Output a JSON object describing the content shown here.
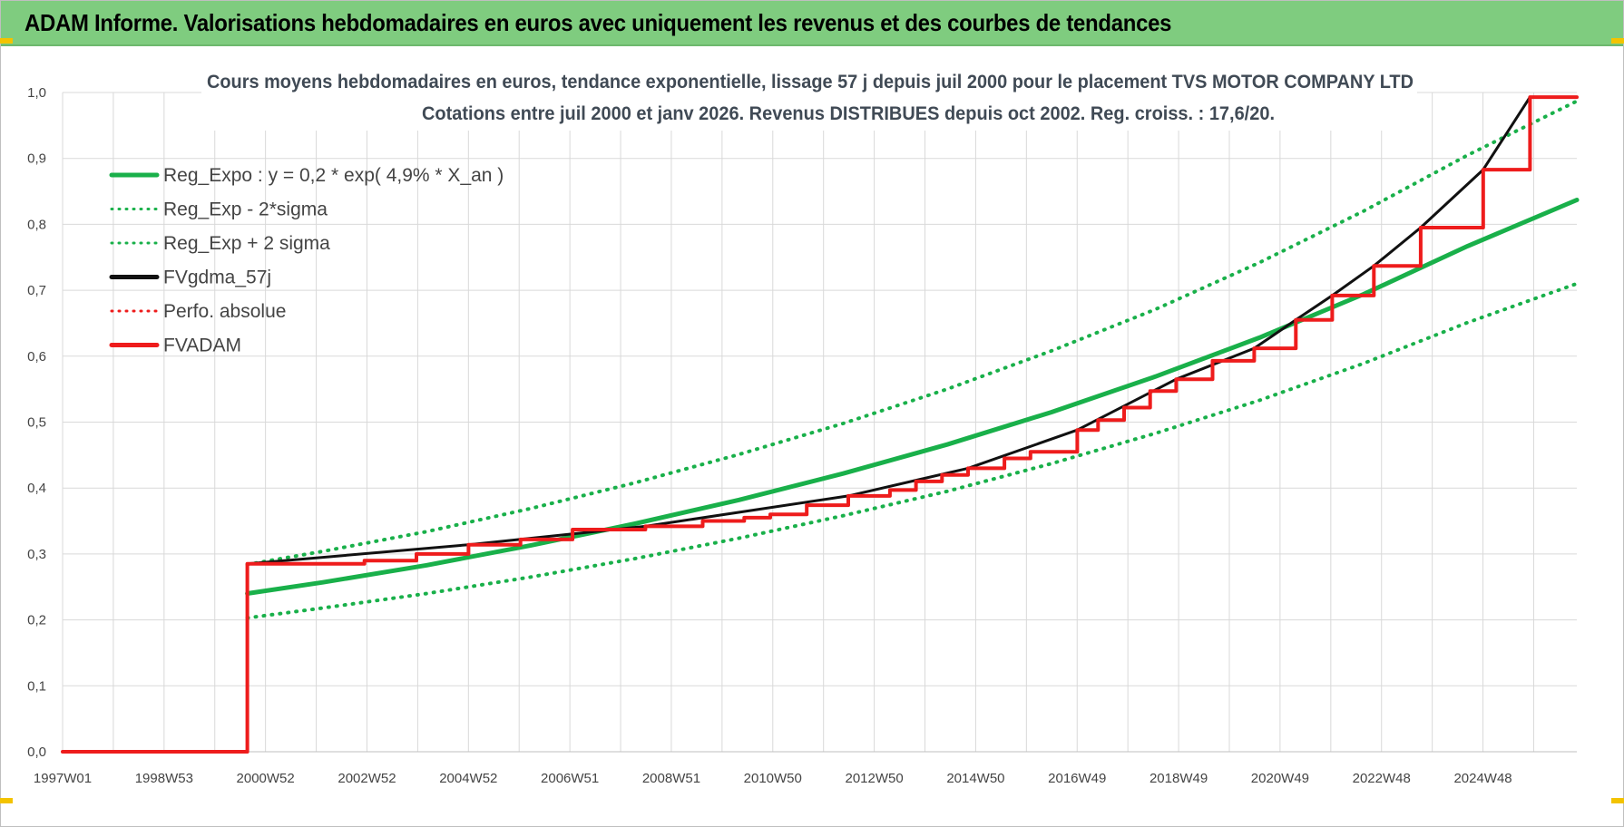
{
  "header": {
    "title": "ADAM Informe. Valorisations hebdomadaires en euros avec uniquement les revenus et des courbes de tendances"
  },
  "colors": {
    "header_bg": "#7fcc7f",
    "green": "#19b04a",
    "red": "#ee1c1c",
    "black": "#111111",
    "grid": "#d9d9d9",
    "corner": "#f3c300"
  },
  "chart_data": {
    "type": "line",
    "title": "Cours moyens hebdomadaires en euros, tendance exponentielle, lissage 57 j depuis juil 2000 pour le placement TVS MOTOR COMPANY LTD",
    "subtitle": "Cotations entre juil 2000 et janv 2026. Revenus DISTRIBUES depuis oct 2002. Reg. croiss. : 17,6/20.",
    "xlabel": "",
    "ylabel": "",
    "xlim": [
      1997.0,
      2026.1
    ],
    "ylim": [
      0.0,
      1.0
    ],
    "y_ticks": [
      "0,0",
      "0,1",
      "0,2",
      "0,3",
      "0,4",
      "0,5",
      "0,6",
      "0,7",
      "0,8",
      "0,9",
      "1,0"
    ],
    "x_tick_labels": [
      "1997W01",
      "1998W53",
      "2000W52",
      "2002W52",
      "2004W52",
      "2006W51",
      "2008W51",
      "2010W50",
      "2012W50",
      "2014W50",
      "2016W49",
      "2018W49",
      "2020W49",
      "2022W48",
      "2024W48"
    ],
    "grid": true,
    "legend_position": "top-left",
    "legend": [
      {
        "label": "Reg_Expo : y = 0,2 * exp( 4,9% *  X_an )",
        "color": "#19b04a",
        "style": "solid"
      },
      {
        "label": "Reg_Exp - 2*sigma",
        "color": "#19b04a",
        "style": "dotted"
      },
      {
        "label": "Reg_Exp + 2 sigma",
        "color": "#19b04a",
        "style": "dotted"
      },
      {
        "label": "FVgdma_57j",
        "color": "#111111",
        "style": "solid"
      },
      {
        "label": "Perfo. absolue",
        "color": "#ee1c1c",
        "style": "dotted"
      },
      {
        "label": "FVADAM",
        "color": "#ee1c1c",
        "style": "solid"
      }
    ],
    "series": [
      {
        "name": "Reg_Expo",
        "x": [
          2000.55,
          2002,
          2004,
          2006,
          2008,
          2010,
          2012,
          2014,
          2016,
          2018,
          2020,
          2022,
          2024,
          2026.1
        ],
        "values": [
          0.24,
          0.257,
          0.283,
          0.313,
          0.346,
          0.382,
          0.422,
          0.466,
          0.515,
          0.569,
          0.628,
          0.694,
          0.767,
          0.837
        ]
      },
      {
        "name": "Reg_Exp - 2*sigma",
        "x": [
          2000.55,
          2002,
          2004,
          2006,
          2008,
          2010,
          2012,
          2014,
          2016,
          2018,
          2020,
          2022,
          2024,
          2026.1
        ],
        "values": [
          0.203,
          0.218,
          0.24,
          0.265,
          0.293,
          0.324,
          0.358,
          0.395,
          0.437,
          0.483,
          0.533,
          0.589,
          0.651,
          0.71
        ]
      },
      {
        "name": "Reg_Exp + 2 sigma",
        "x": [
          2000.55,
          2002,
          2004,
          2006,
          2008,
          2010,
          2012,
          2014,
          2016,
          2018,
          2020,
          2022,
          2024,
          2026.1
        ],
        "values": [
          0.284,
          0.304,
          0.334,
          0.369,
          0.408,
          0.451,
          0.498,
          0.55,
          0.608,
          0.671,
          0.742,
          0.82,
          0.905,
          0.987
        ]
      },
      {
        "name": "FVADAM",
        "x": [
          1997.0,
          2000.55,
          2002.8,
          2003.8,
          2004.8,
          2005.8,
          2006.8,
          2008.2,
          2009.3,
          2010.1,
          2010.6,
          2011.3,
          2012.1,
          2012.9,
          2013.4,
          2013.9,
          2014.4,
          2015.1,
          2015.6,
          2016.5,
          2016.9,
          2017.4,
          2017.9,
          2018.4,
          2019.1,
          2019.9,
          2020.7,
          2021.4,
          2022.2,
          2023.1,
          2024.3,
          2025.2,
          2026.1
        ],
        "values": [
          0.0,
          0.285,
          0.29,
          0.3,
          0.314,
          0.322,
          0.337,
          0.342,
          0.35,
          0.355,
          0.36,
          0.374,
          0.388,
          0.397,
          0.41,
          0.42,
          0.43,
          0.445,
          0.455,
          0.488,
          0.503,
          0.522,
          0.547,
          0.565,
          0.593,
          0.612,
          0.655,
          0.692,
          0.737,
          0.795,
          0.883,
          0.993,
          0.993
        ]
      },
      {
        "name": "FVgdma_57j",
        "x": [
          2000.55,
          2004.8,
          2008.2,
          2012.1,
          2014.4,
          2016.5,
          2018.4,
          2019.9,
          2020.7,
          2021.4,
          2022.2,
          2023.1,
          2024.3,
          2025.2,
          2026.1
        ],
        "values": [
          0.285,
          0.314,
          0.342,
          0.388,
          0.43,
          0.488,
          0.565,
          0.612,
          0.655,
          0.692,
          0.737,
          0.795,
          0.883,
          0.993,
          0.993
        ]
      }
    ]
  }
}
